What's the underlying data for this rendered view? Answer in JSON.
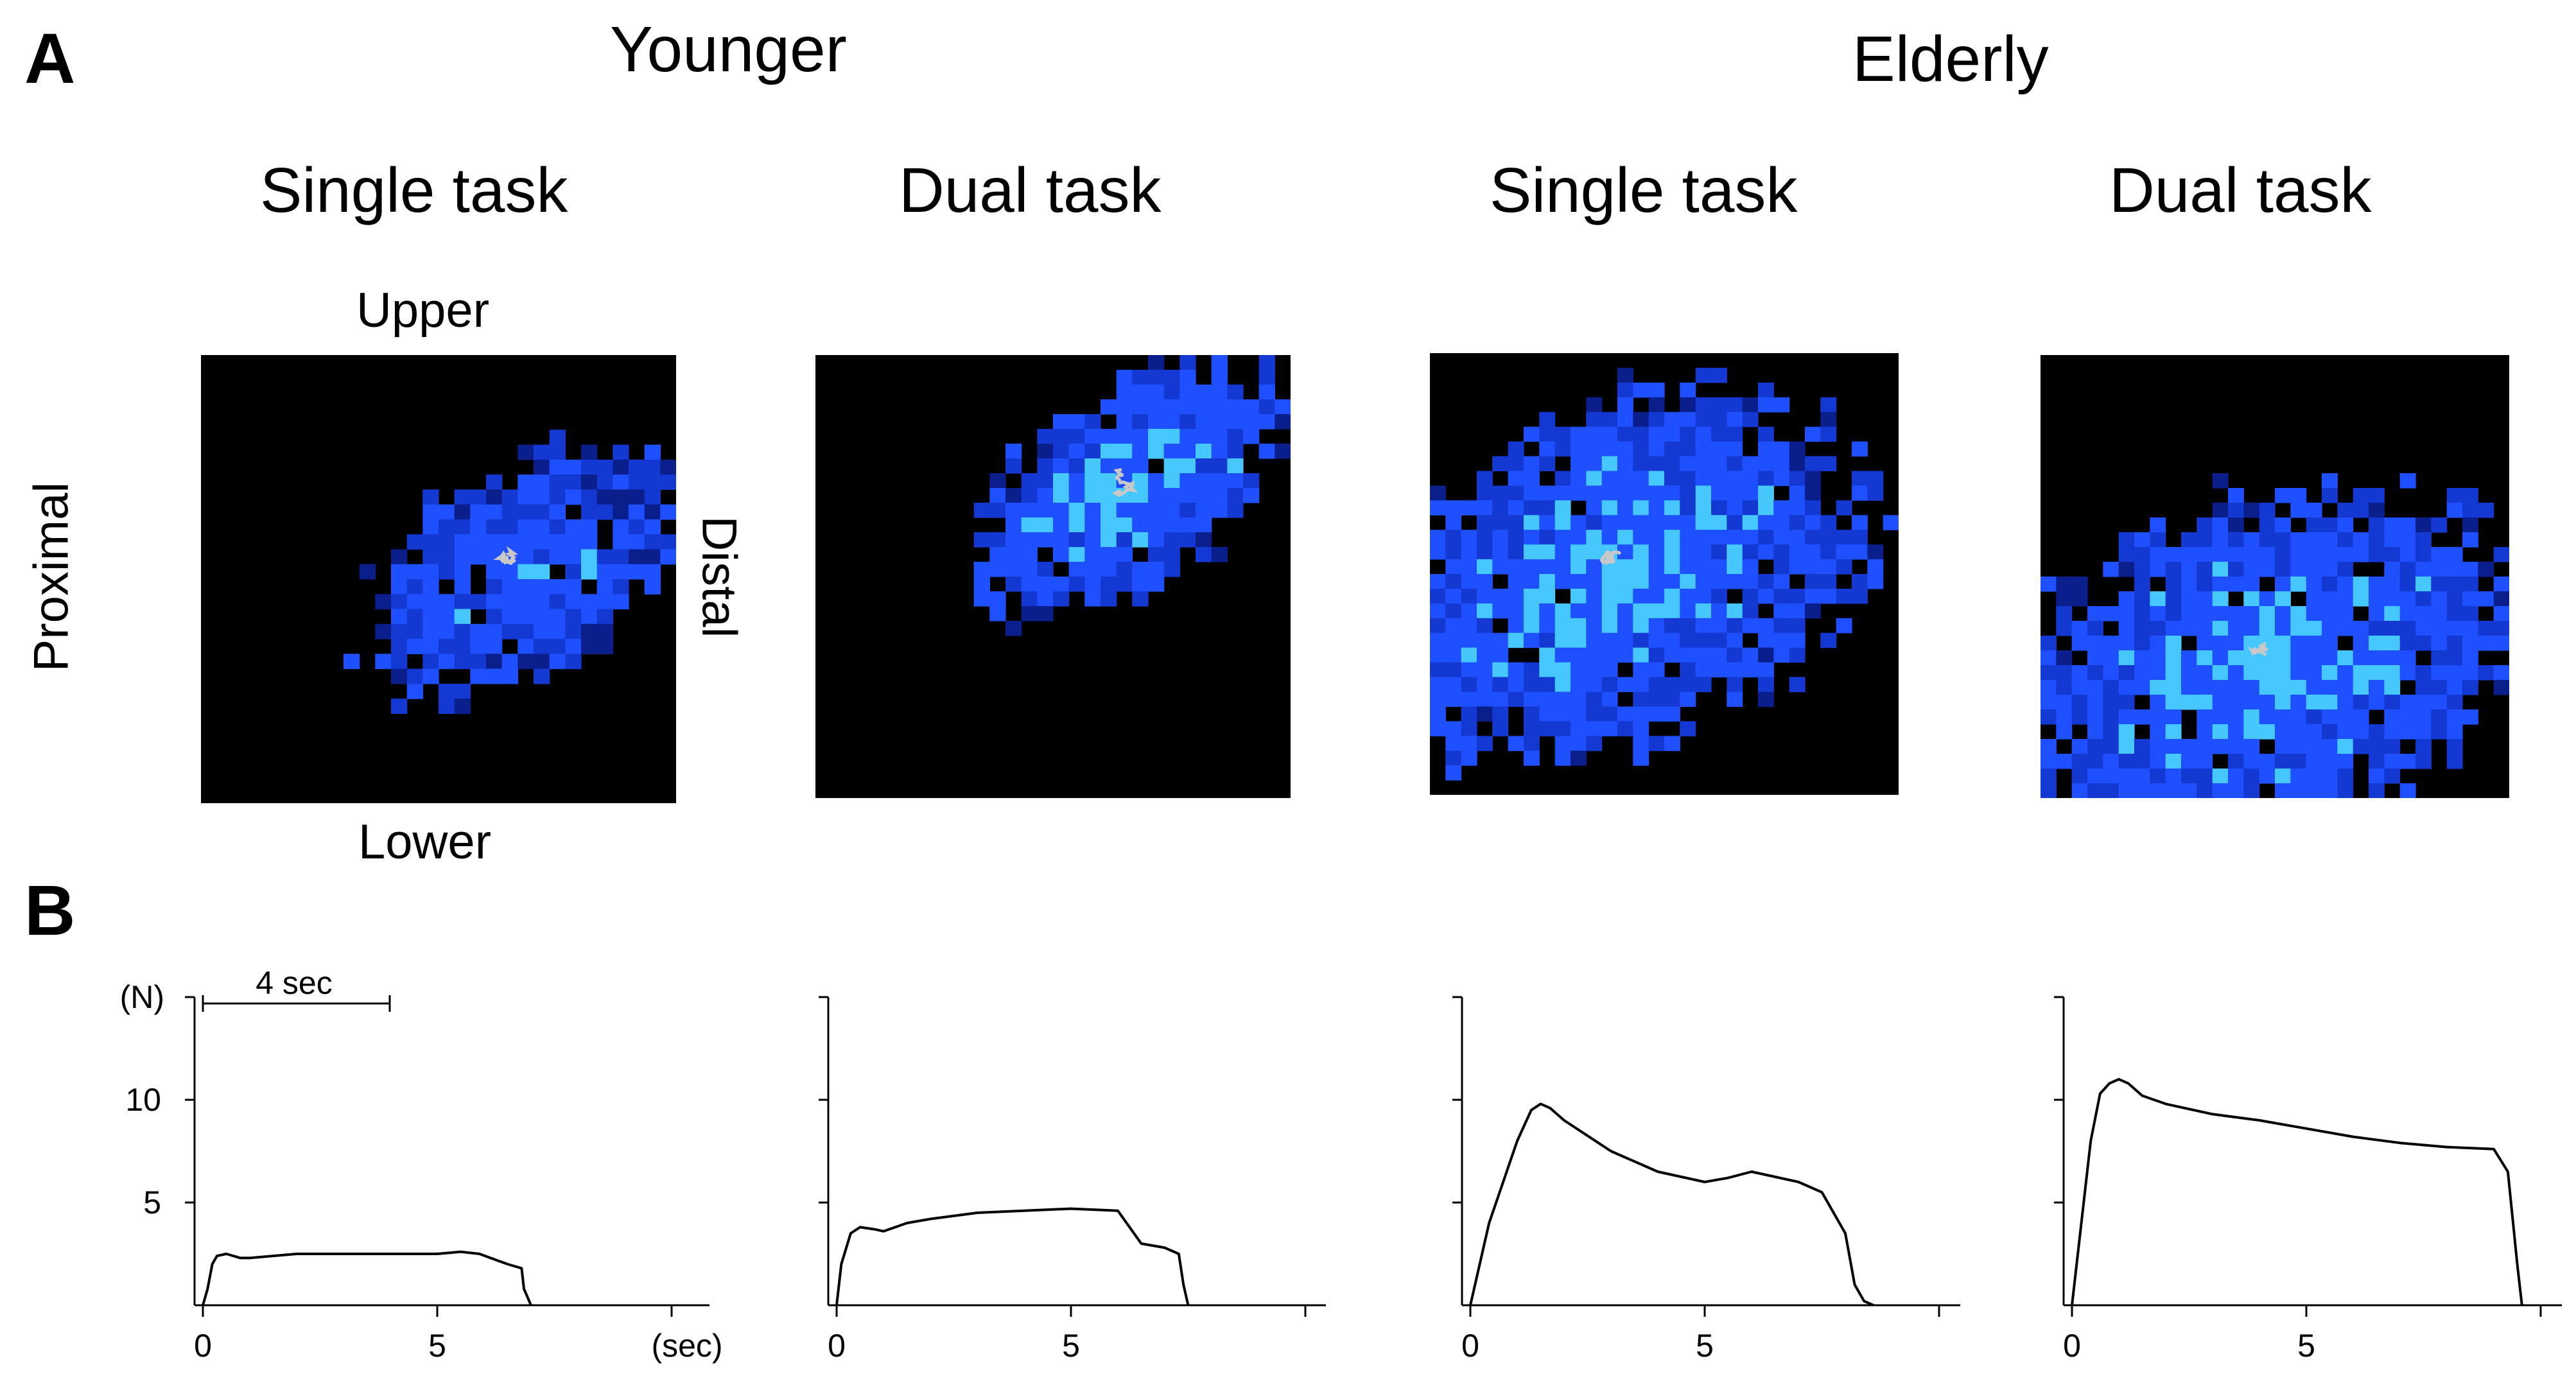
{
  "panels": {
    "a": "A",
    "b": "B"
  },
  "groups": {
    "younger": "Younger",
    "elderly": "Elderly"
  },
  "tasks": {
    "single": "Single task",
    "dual": "Dual task"
  },
  "orientation": {
    "upper": "Upper",
    "lower": "Lower",
    "proximal": "Proximal",
    "distal": "Distal"
  },
  "colors": {
    "heat_low": "#0a1e8c",
    "heat_mid": "#1e50ff",
    "heat_high": "#46c8ff",
    "trace": "#000000",
    "cop_path": "#c8c8c8"
  },
  "scale_bar": {
    "label": "4 sec",
    "seconds": 4
  },
  "chart_data": [
    {
      "type": "heatmap",
      "group": "Younger",
      "task": "Single task",
      "blob": {
        "cx": 0.68,
        "cy": 0.48,
        "rx": 0.3,
        "ry": 0.18,
        "angle": -35,
        "intensity": 0.55
      }
    },
    {
      "type": "heatmap",
      "group": "Younger",
      "task": "Dual task",
      "blob": {
        "cx": 0.66,
        "cy": 0.3,
        "rx": 0.3,
        "ry": 0.17,
        "angle": -40,
        "intensity": 0.7
      }
    },
    {
      "type": "heatmap",
      "group": "Elderly",
      "task": "Single task",
      "blob": {
        "cx": 0.4,
        "cy": 0.5,
        "rx": 0.45,
        "ry": 0.3,
        "angle": -25,
        "intensity": 0.65
      }
    },
    {
      "type": "heatmap",
      "group": "Elderly",
      "task": "Dual task",
      "blob": {
        "cx": 0.48,
        "cy": 0.7,
        "rx": 0.45,
        "ry": 0.3,
        "angle": -20,
        "intensity": 0.7
      }
    },
    {
      "type": "line",
      "group": "Younger",
      "task": "Single task",
      "xlabel": "(sec)",
      "ylabel": "(N)",
      "xlim": [
        0,
        10
      ],
      "ylim": [
        0,
        15
      ],
      "x_ticks": [
        0,
        5
      ],
      "y_ticks": [
        5,
        10
      ],
      "x": [
        0,
        0.1,
        0.2,
        0.3,
        0.5,
        0.8,
        1.0,
        2.0,
        3.0,
        4.0,
        5.0,
        5.5,
        5.9,
        6.5,
        6.8,
        6.85,
        7.0
      ],
      "y": [
        0,
        0.8,
        2.0,
        2.4,
        2.5,
        2.3,
        2.3,
        2.5,
        2.5,
        2.5,
        2.5,
        2.6,
        2.5,
        2.0,
        1.8,
        0.8,
        0
      ]
    },
    {
      "type": "line",
      "group": "Younger",
      "task": "Dual task",
      "xlim": [
        0,
        10
      ],
      "ylim": [
        0,
        15
      ],
      "x_ticks": [
        0,
        5
      ],
      "x": [
        0,
        0.1,
        0.3,
        0.5,
        0.8,
        1.0,
        1.5,
        2.0,
        3.0,
        4.0,
        5.0,
        6.0,
        6.5,
        7.0,
        7.3,
        7.4,
        7.5
      ],
      "y": [
        0,
        2.0,
        3.5,
        3.8,
        3.7,
        3.6,
        4.0,
        4.2,
        4.5,
        4.6,
        4.7,
        4.6,
        3.0,
        2.8,
        2.5,
        1.0,
        0
      ]
    },
    {
      "type": "line",
      "group": "Elderly",
      "task": "Single task",
      "xlim": [
        0,
        10
      ],
      "ylim": [
        0,
        15
      ],
      "x_ticks": [
        0,
        5
      ],
      "x": [
        0,
        0.2,
        0.4,
        0.7,
        1.0,
        1.3,
        1.5,
        1.7,
        2.0,
        3.0,
        4.0,
        5.0,
        5.5,
        6.0,
        7.0,
        7.5,
        8.0,
        8.2,
        8.4,
        8.6
      ],
      "y": [
        0,
        2.0,
        4.0,
        6.0,
        8.0,
        9.5,
        9.8,
        9.6,
        9.0,
        7.5,
        6.5,
        6.0,
        6.2,
        6.5,
        6.0,
        5.5,
        3.5,
        1.0,
        0.2,
        0
      ]
    },
    {
      "type": "line",
      "group": "Elderly",
      "task": "Dual task",
      "xlim": [
        0,
        10
      ],
      "ylim": [
        0,
        15
      ],
      "x_ticks": [
        0,
        5
      ],
      "x": [
        0,
        0.2,
        0.4,
        0.6,
        0.8,
        1.0,
        1.2,
        1.5,
        2.0,
        3.0,
        4.0,
        5.0,
        6.0,
        7.0,
        8.0,
        9.0,
        9.3,
        9.5,
        9.6
      ],
      "y": [
        0,
        4.0,
        8.0,
        10.3,
        10.8,
        11.0,
        10.8,
        10.2,
        9.8,
        9.3,
        9.0,
        8.6,
        8.2,
        7.9,
        7.7,
        7.6,
        6.5,
        2.0,
        0
      ]
    }
  ]
}
